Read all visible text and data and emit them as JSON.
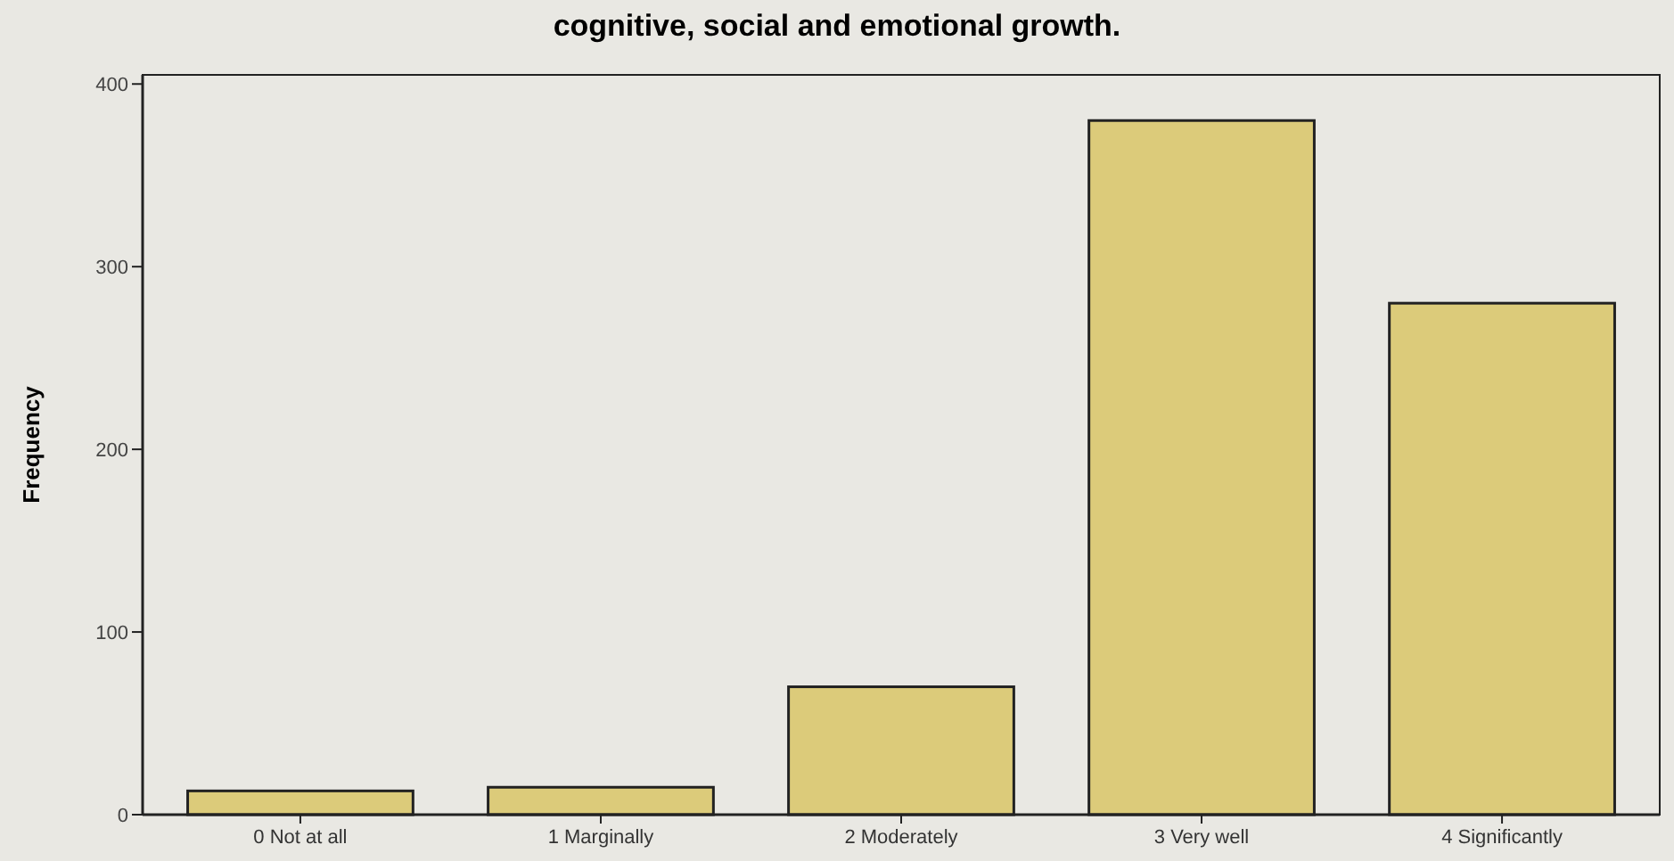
{
  "chart_data": {
    "type": "bar",
    "title": "cognitive, social and emotional growth.",
    "ylabel": "Frequency",
    "categories": [
      "0 Not at all",
      "1  Marginally",
      "2  Moderately",
      "3  Very well",
      "4  Significantly"
    ],
    "values": [
      13,
      15,
      70,
      380,
      280
    ],
    "color": "#dccb7a",
    "ylim": [
      0,
      405
    ],
    "yticks": [
      0,
      100,
      200,
      300,
      400
    ],
    "grid": false
  }
}
